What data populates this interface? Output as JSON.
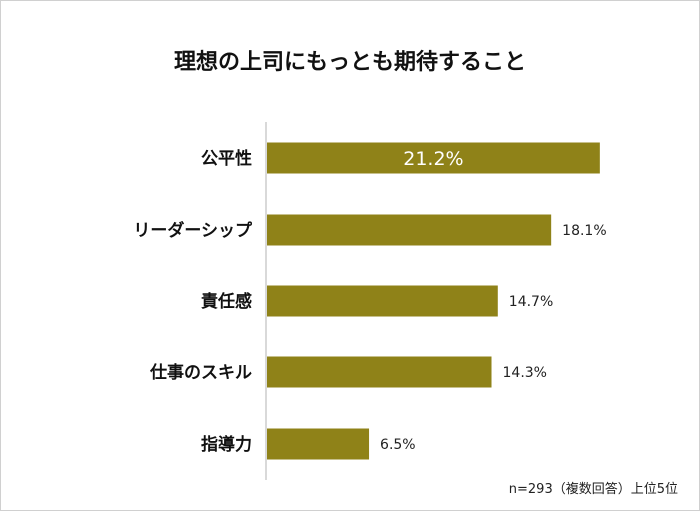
{
  "chart_data": {
    "type": "bar",
    "orientation": "horizontal",
    "title": "理想の上司にもっとも期待すること",
    "categories": [
      "公平性",
      "リーダーシップ",
      "責任感",
      "仕事のスキル",
      "指導力"
    ],
    "values": [
      21.2,
      18.1,
      14.7,
      14.3,
      6.5
    ],
    "value_labels": [
      "21.2%",
      "18.1%",
      "14.7%",
      "14.3%",
      "6.5%"
    ],
    "bar_color": "#8f8218",
    "grid": false,
    "note": "n=293（複数回答）上位5位"
  }
}
